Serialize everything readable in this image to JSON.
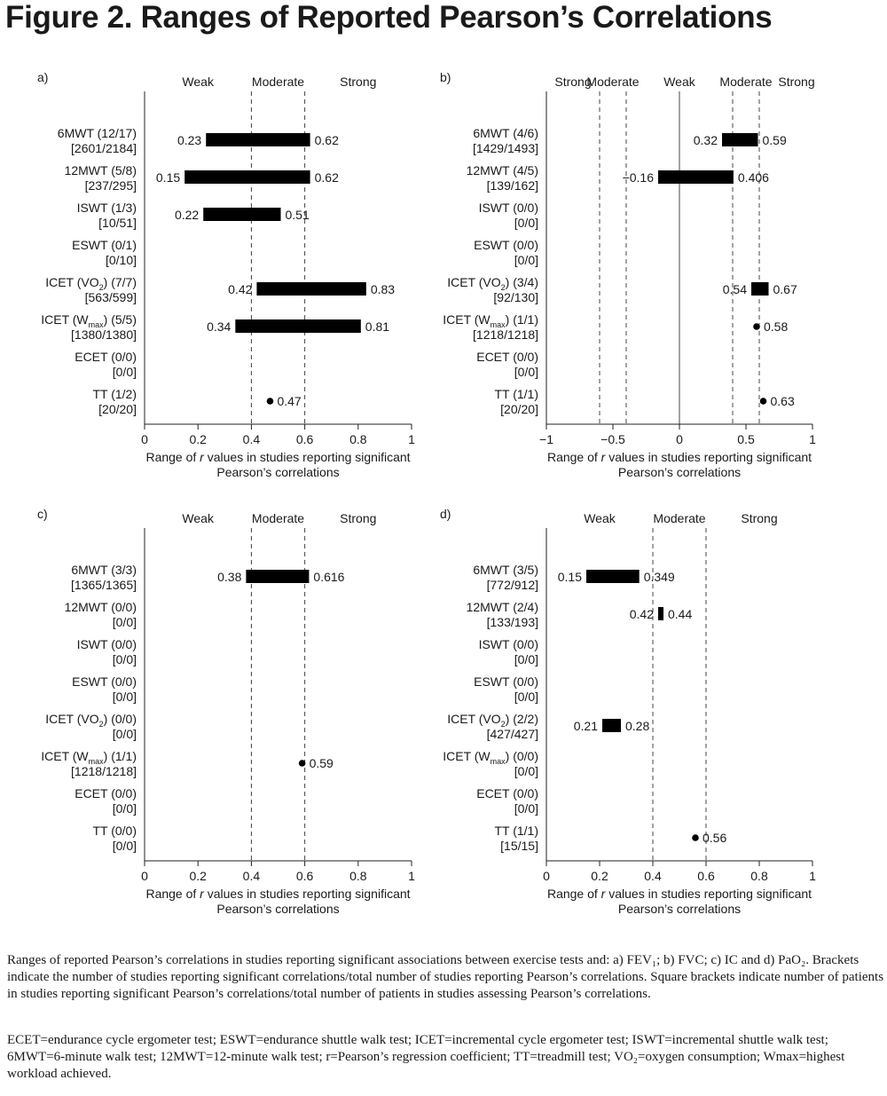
{
  "figure": {
    "title": "Figure 2. Ranges of Reported Pearson’s Correlations",
    "caption_1": "Ranges of reported Pearson’s correlations in studies reporting significant associations between exercise tests and: a) FEV₁; b) FVC; c) IC and d) PaO₂. Brackets indicate the number of studies reporting significant correlations/total number of studies reporting Pearson’s correlations. Square brackets indicate number of patients in studies reporting significant Pearson’s correlations/total number of patients in studies assessing Pearson’s correlations.",
    "caption_2": "ECET=endurance cycle ergometer test; ESWT=endurance shuttle walk test; ICET=incremental cycle ergometer test; ISWT=incremental shuttle walk test; 6MWT=6-minute walk test; 12MWT=12-minute walk test; r=Pearson’s regression coefficient; TT=treadmill test; VO₂=oxygen consumption;  Wmax=highest workload achieved."
  },
  "chart_data": [
    {
      "type": "range",
      "panel": "a)",
      "xlabel": "Range of r values in studies reporting significant Pearson’s correlations",
      "xlim": [
        0,
        1
      ],
      "xticks": [
        "0",
        "0.2",
        "0.4",
        "0.6",
        "0.8",
        "1"
      ],
      "xtick_values": [
        0,
        0.2,
        0.4,
        0.6,
        0.8,
        1
      ],
      "zones": [
        {
          "label": "Weak",
          "center": 0.2
        },
        {
          "label": "Moderate",
          "center": 0.5
        },
        {
          "label": "Strong",
          "center": 0.8
        }
      ],
      "dashed_lines": [
        0.4,
        0.6
      ],
      "solid_lines": [],
      "categories": [
        {
          "label1": "6MWT (12/17)",
          "label2": "[2601/2184]",
          "low": 0.23,
          "high": 0.62,
          "low_label": "0.23",
          "high_label": "0.62"
        },
        {
          "label1": "12MWT (5/8)",
          "label2": "[237/295]",
          "low": 0.15,
          "high": 0.62,
          "low_label": "0.15",
          "high_label": "0.62"
        },
        {
          "label1": "ISWT (1/3)",
          "label2": "[10/51]",
          "low": 0.22,
          "high": 0.51,
          "low_label": "0.22",
          "high_label": "0.51"
        },
        {
          "label1": "ESWT (0/1)",
          "label2": "[0/10]"
        },
        {
          "label1": "ICET (VO",
          "sub": "2",
          "label1_rest": ") (7/7)",
          "label2": "[563/599]",
          "low": 0.42,
          "high": 0.83,
          "low_label": "0.42",
          "high_label": "0.83"
        },
        {
          "label1": "ICET (W",
          "sub": "max",
          "label1_rest": ") (5/5)",
          "label2": "[1380/1380]",
          "low": 0.34,
          "high": 0.81,
          "low_label": "0.34",
          "high_label": "0.81"
        },
        {
          "label1": "ECET (0/0)",
          "label2": "[0/0]"
        },
        {
          "label1": "TT (1/2)",
          "label2": "[20/20]",
          "point": 0.47,
          "point_label": "0.47"
        }
      ]
    },
    {
      "type": "range",
      "panel": "b)",
      "xlabel": "Range of r values in studies reporting significant Pearson’s correlations",
      "xlim": [
        -1,
        1
      ],
      "xticks": [
        "−1",
        "−0.5",
        "0",
        "0.5",
        "1"
      ],
      "xtick_values": [
        -1,
        -0.5,
        0,
        0.5,
        1
      ],
      "zones": [
        {
          "label": "Strong",
          "center": -0.8
        },
        {
          "label": "Moderate",
          "center": -0.5
        },
        {
          "label": "Weak",
          "center": 0
        },
        {
          "label": "Moderate",
          "center": 0.5
        },
        {
          "label": "Strong",
          "center": 0.88
        }
      ],
      "dashed_lines": [
        -0.6,
        -0.4,
        0.4,
        0.6
      ],
      "solid_lines": [
        0
      ],
      "categories": [
        {
          "label1": "6MWT (4/6)",
          "label2": "[1429/1493]",
          "low": 0.32,
          "high": 0.59,
          "low_label": "0.32",
          "high_label": "0.59"
        },
        {
          "label1": "12MWT (4/5)",
          "label2": "[139/162]",
          "low": -0.16,
          "high": 0.406,
          "low_label": "−0.16",
          "high_label": "0.406"
        },
        {
          "label1": "ISWT (0/0)",
          "label2": "[0/0]"
        },
        {
          "label1": "ESWT (0/0)",
          "label2": "[0/0]"
        },
        {
          "label1": "ICET (VO",
          "sub": "2",
          "label1_rest": ") (3/4)",
          "label2": "[92/130]",
          "low": 0.54,
          "high": 0.67,
          "low_label": "0.54",
          "high_label": "0.67"
        },
        {
          "label1": "ICET (W",
          "sub": "max",
          "label1_rest": ") (1/1)",
          "label2": "[1218/1218]",
          "point": 0.58,
          "point_label": "0.58"
        },
        {
          "label1": "ECET (0/0)",
          "label2": "[0/0]"
        },
        {
          "label1": "TT (1/1)",
          "label2": "[20/20]",
          "point": 0.63,
          "point_label": "0.63"
        }
      ]
    },
    {
      "type": "range",
      "panel": "c)",
      "xlabel": "Range of r values in studies reporting significant Pearson’s correlations",
      "xlim": [
        0,
        1
      ],
      "xticks": [
        "0",
        "0.2",
        "0.4",
        "0.6",
        "0.8",
        "1"
      ],
      "xtick_values": [
        0,
        0.2,
        0.4,
        0.6,
        0.8,
        1
      ],
      "zones": [
        {
          "label": "Weak",
          "center": 0.2
        },
        {
          "label": "Moderate",
          "center": 0.5
        },
        {
          "label": "Strong",
          "center": 0.8
        }
      ],
      "dashed_lines": [
        0.4,
        0.6
      ],
      "solid_lines": [],
      "categories": [
        {
          "label1": "6MWT (3/3)",
          "label2": "[1365/1365]",
          "low": 0.38,
          "high": 0.616,
          "low_label": "0.38",
          "high_label": "0.616"
        },
        {
          "label1": "12MWT (0/0)",
          "label2": "[0/0]"
        },
        {
          "label1": "ISWT (0/0)",
          "label2": "[0/0]"
        },
        {
          "label1": "ESWT (0/0)",
          "label2": "[0/0]"
        },
        {
          "label1": "ICET (VO",
          "sub": "2",
          "label1_rest": ") (0/0)",
          "label2": "[0/0]"
        },
        {
          "label1": "ICET (W",
          "sub": "max",
          "label1_rest": ") (1/1)",
          "label2": "[1218/1218]",
          "point": 0.59,
          "point_label": "0.59"
        },
        {
          "label1": "ECET (0/0)",
          "label2": "[0/0]"
        },
        {
          "label1": "TT (0/0)",
          "label2": "[0/0]"
        }
      ]
    },
    {
      "type": "range",
      "panel": "d)",
      "xlabel": "Range of r values in studies reporting significant Pearson’s correlations",
      "xlim": [
        0,
        1
      ],
      "xticks": [
        "0",
        "0.2",
        "0.4",
        "0.6",
        "0.8",
        "1"
      ],
      "xtick_values": [
        0,
        0.2,
        0.4,
        0.6,
        0.8,
        1
      ],
      "zones": [
        {
          "label": "Weak",
          "center": 0.2
        },
        {
          "label": "Moderate",
          "center": 0.5
        },
        {
          "label": "Strong",
          "center": 0.8
        }
      ],
      "dashed_lines": [
        0.4,
        0.6
      ],
      "solid_lines": [],
      "categories": [
        {
          "label1": "6MWT (3/5)",
          "label2": "[772/912]",
          "low": 0.15,
          "high": 0.349,
          "low_label": "0.15",
          "high_label": "0.349"
        },
        {
          "label1": "12MWT (2/4)",
          "label2": "[133/193]",
          "low": 0.42,
          "high": 0.44,
          "low_label": "0.42",
          "high_label": "0.44"
        },
        {
          "label1": "ISWT (0/0)",
          "label2": "[0/0]"
        },
        {
          "label1": "ESWT (0/0)",
          "label2": "[0/0]"
        },
        {
          "label1": "ICET (VO",
          "sub": "2",
          "label1_rest": ") (2/2)",
          "label2": "[427/427]",
          "low": 0.21,
          "high": 0.28,
          "low_label": "0.21",
          "high_label": "0.28"
        },
        {
          "label1": "ICET (W",
          "sub": "max",
          "label1_rest": ") (0/0)",
          "label2": "[0/0]"
        },
        {
          "label1": "ECET (0/0)",
          "label2": "[0/0]"
        },
        {
          "label1": "TT (1/1)",
          "label2": "[15/15]",
          "point": 0.56,
          "point_label": "0.56"
        }
      ]
    }
  ]
}
